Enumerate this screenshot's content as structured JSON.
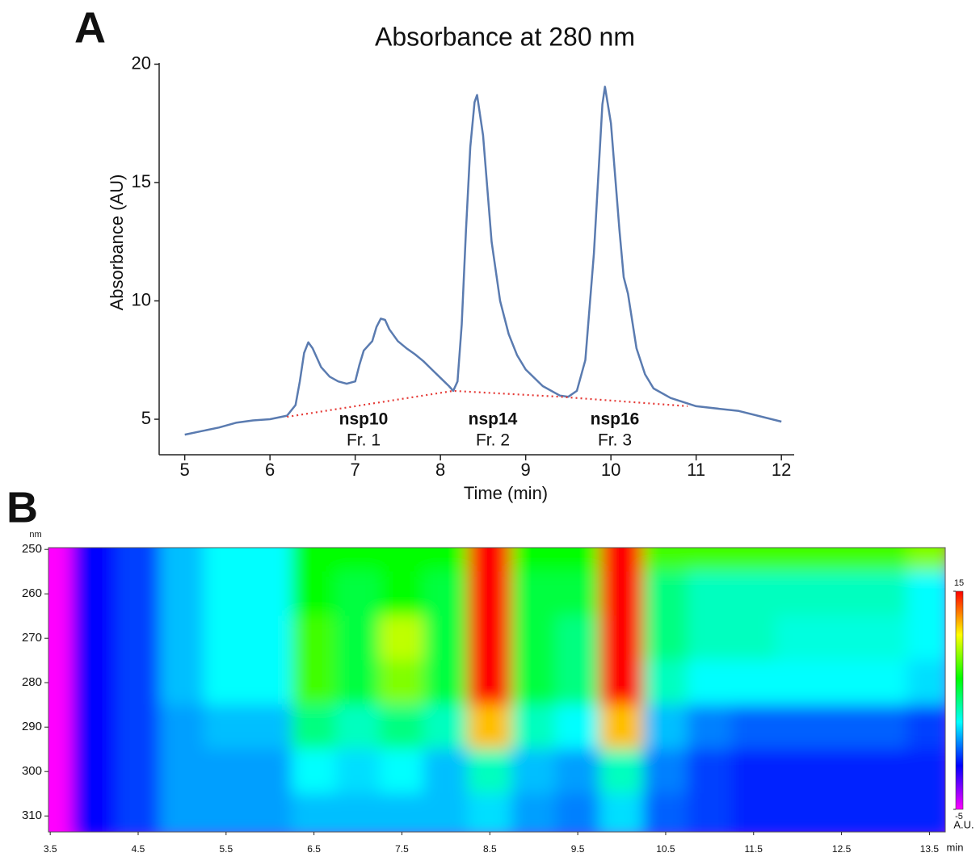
{
  "chart_data": [
    {
      "type": "line",
      "panel": "A",
      "title": "Absorbance at 280 nm",
      "x_label": "Time (min)",
      "y_label": "Absorbance (AU)",
      "xlim": [
        4.7,
        12.15
      ],
      "xticks": [
        5,
        6,
        7,
        8,
        9,
        10,
        11,
        12
      ],
      "ylim": [
        3.5,
        20.05
      ],
      "yticks": [
        5,
        10,
        15,
        20
      ],
      "series": [
        {
          "color": "#5a7bb0",
          "style": "solid",
          "x": [
            5.0,
            5.2,
            5.4,
            5.6,
            5.8,
            6.0,
            6.2,
            6.3,
            6.35,
            6.4,
            6.45,
            6.5,
            6.6,
            6.7,
            6.8,
            6.9,
            7.0,
            7.05,
            7.1,
            7.15,
            7.2,
            7.25,
            7.3,
            7.35,
            7.4,
            7.5,
            7.6,
            7.7,
            7.8,
            7.9,
            8.0,
            8.1,
            8.15,
            8.2,
            8.25,
            8.3,
            8.35,
            8.4,
            8.43,
            8.5,
            8.6,
            8.7,
            8.8,
            8.9,
            9.0,
            9.2,
            9.4,
            9.5,
            9.6,
            9.7,
            9.8,
            9.9,
            9.93,
            10.0,
            10.1,
            10.15,
            10.2,
            10.3,
            10.4,
            10.5,
            10.7,
            11.0,
            11.5,
            12.0
          ],
          "values": [
            4.35,
            4.5,
            4.65,
            4.85,
            4.95,
            5.0,
            5.15,
            5.6,
            6.6,
            7.8,
            8.25,
            8.0,
            7.2,
            6.8,
            6.6,
            6.5,
            6.6,
            7.3,
            7.9,
            8.1,
            8.3,
            8.9,
            9.25,
            9.2,
            8.8,
            8.3,
            8.0,
            7.75,
            7.45,
            7.1,
            6.75,
            6.4,
            6.2,
            6.6,
            9.0,
            13.0,
            16.5,
            18.4,
            18.7,
            17.0,
            12.5,
            10.0,
            8.6,
            7.7,
            7.1,
            6.4,
            6.0,
            5.95,
            6.2,
            7.5,
            12.0,
            18.3,
            19.05,
            17.5,
            13.0,
            11.0,
            10.3,
            8.0,
            6.9,
            6.3,
            5.9,
            5.55,
            5.35,
            4.9
          ]
        },
        {
          "color": "#e53935",
          "style": "dotted",
          "x": [
            6.2,
            8.15,
            9.4,
            10.9
          ],
          "values": [
            5.1,
            6.2,
            5.95,
            5.55
          ]
        }
      ],
      "annotations": [
        {
          "text": "nsp10",
          "sub": "Fr. 1"
        },
        {
          "text": "nsp14",
          "sub": "Fr. 2"
        },
        {
          "text": "nsp16",
          "sub": "Fr. 3"
        }
      ]
    },
    {
      "type": "heatmap",
      "panel": "B",
      "x_label": "min",
      "y_label": "nm",
      "xlim": [
        3.48,
        13.68
      ],
      "xticks": [
        3.5,
        4.5,
        5.5,
        6.5,
        7.5,
        8.5,
        9.5,
        10.5,
        11.5,
        12.5,
        13.5
      ],
      "ylim": [
        249.6,
        313.6
      ],
      "yticks": [
        250,
        260,
        270,
        280,
        290,
        300,
        310
      ],
      "x": [
        3.5,
        4,
        4.5,
        5,
        5.5,
        6,
        6.5,
        7,
        7.5,
        8,
        8.5,
        9,
        9.5,
        10,
        10.5,
        11,
        11.5,
        12,
        12.5,
        13,
        13.5
      ],
      "y": [
        250,
        260,
        270,
        280,
        290,
        300,
        310
      ],
      "z": [
        [
          -5,
          -1,
          0,
          2,
          3,
          3,
          7,
          7,
          7,
          7,
          15,
          7,
          7,
          15,
          8,
          8,
          8,
          8,
          8,
          8,
          9
        ],
        [
          -5,
          -1,
          0,
          2,
          3,
          3,
          7,
          6,
          7,
          6,
          15,
          6,
          6,
          15,
          5,
          4,
          4,
          4,
          4,
          4,
          3
        ],
        [
          -5,
          -1,
          0,
          2,
          3,
          3,
          8,
          6,
          10,
          6,
          15,
          6,
          5,
          15,
          5,
          4,
          4,
          3.5,
          3.5,
          3.5,
          3
        ],
        [
          -5,
          -1,
          0,
          2,
          3,
          3,
          8,
          6,
          9,
          6,
          15,
          6,
          5,
          15,
          4,
          3,
          3,
          3,
          3,
          3,
          2.5
        ],
        [
          -5,
          -1,
          0,
          1.5,
          2,
          2,
          5,
          4,
          5,
          4,
          12,
          4,
          3,
          12,
          2,
          1,
          0.5,
          0.5,
          0.5,
          0.5,
          0
        ],
        [
          -5,
          -1,
          0,
          1.5,
          1.5,
          1.5,
          3,
          2.5,
          3,
          2,
          4,
          2,
          1.5,
          4,
          1,
          0,
          -0.5,
          -0.5,
          -0.5,
          -0.5,
          -0.5
        ],
        [
          -5,
          -1,
          0,
          1.5,
          1.5,
          1.5,
          2,
          2,
          2,
          2,
          2.5,
          1.5,
          1,
          2.5,
          0.5,
          0,
          -0.5,
          -0.5,
          -0.5,
          -0.5,
          -0.5
        ]
      ],
      "colorbar": {
        "lim": [
          -5,
          15
        ],
        "ticks": [
          15,
          -5
        ],
        "label": "A.U."
      }
    }
  ]
}
